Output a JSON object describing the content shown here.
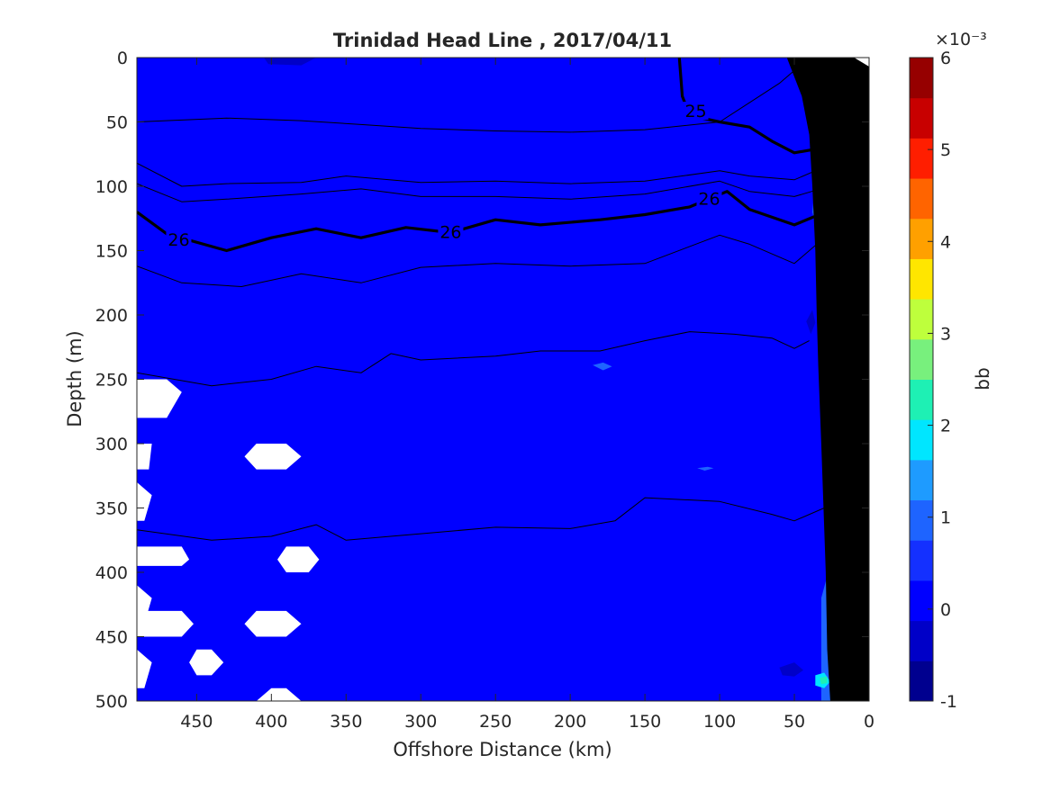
{
  "chart_data": {
    "type": "heatmap",
    "title": "Trinidad Head Line , 2017/04/11",
    "xlabel": "Offshore Distance (km)",
    "ylabel": "Depth (m)",
    "xlim": [
      490,
      0
    ],
    "ylim": [
      0,
      500
    ],
    "x_ticks": [
      "450",
      "400",
      "350",
      "300",
      "250",
      "200",
      "150",
      "100",
      "50",
      "0"
    ],
    "x_tick_values": [
      450,
      400,
      350,
      300,
      250,
      200,
      150,
      100,
      50,
      0
    ],
    "y_ticks": [
      "0",
      "50",
      "100",
      "150",
      "200",
      "250",
      "300",
      "350",
      "400",
      "450",
      "500"
    ],
    "y_tick_values": [
      0,
      50,
      100,
      150,
      200,
      250,
      300,
      350,
      400,
      450,
      500
    ],
    "field_value": 0.3,
    "colorbar": {
      "label": "bb",
      "exponent_label": "×10⁻³",
      "range": [
        -1,
        6
      ],
      "ticks": [
        "-1",
        "0",
        "1",
        "2",
        "3",
        "4",
        "5",
        "6"
      ],
      "tick_values": [
        -1,
        0,
        1,
        2,
        3,
        4,
        5,
        6
      ],
      "colors": [
        "#00008f",
        "#0000c8",
        "#0000ff",
        "#1430ff",
        "#1e64ff",
        "#1e9bff",
        "#00e6ff",
        "#1ef0b4",
        "#78f07d",
        "#beff3c",
        "#ffe600",
        "#ffa000",
        "#ff6400",
        "#ff1e00",
        "#c80000",
        "#960000"
      ]
    },
    "contours": [
      {
        "label": "",
        "bold": false,
        "points": [
          [
            490,
            50
          ],
          [
            430,
            47
          ],
          [
            380,
            49
          ],
          [
            340,
            52
          ],
          [
            300,
            55
          ],
          [
            250,
            57
          ],
          [
            200,
            58
          ],
          [
            150,
            56
          ],
          [
            100,
            50
          ],
          [
            60,
            20
          ],
          [
            40,
            0
          ]
        ]
      },
      {
        "label": "",
        "bold": false,
        "points": [
          [
            490,
            82
          ],
          [
            460,
            100
          ],
          [
            430,
            98
          ],
          [
            380,
            97
          ],
          [
            350,
            92
          ],
          [
            300,
            97
          ],
          [
            250,
            96
          ],
          [
            200,
            98
          ],
          [
            150,
            96
          ],
          [
            100,
            88
          ],
          [
            80,
            92
          ],
          [
            50,
            95
          ],
          [
            20,
            80
          ]
        ]
      },
      {
        "label": "",
        "bold": false,
        "points": [
          [
            490,
            98
          ],
          [
            460,
            112
          ],
          [
            430,
            110
          ],
          [
            380,
            106
          ],
          [
            340,
            102
          ],
          [
            300,
            108
          ],
          [
            250,
            108
          ],
          [
            200,
            110
          ],
          [
            150,
            106
          ],
          [
            100,
            96
          ],
          [
            80,
            104
          ],
          [
            50,
            108
          ],
          [
            15,
            96
          ]
        ]
      },
      {
        "label": "25",
        "bold": true,
        "label_at": [
          116,
          42
        ],
        "points": [
          [
            127,
            0
          ],
          [
            125,
            30
          ],
          [
            120,
            45
          ],
          [
            100,
            50
          ],
          [
            80,
            54
          ],
          [
            65,
            65
          ],
          [
            50,
            74
          ],
          [
            30,
            70
          ],
          [
            15,
            60
          ],
          [
            10,
            48
          ]
        ]
      },
      {
        "label": "26",
        "bold": true,
        "label_at": [
          462,
          142
        ],
        "label2": "26",
        "label2_at": [
          280,
          136
        ],
        "label3": "26",
        "label3_at": [
          107,
          110
        ],
        "points": [
          [
            490,
            120
          ],
          [
            470,
            137
          ],
          [
            430,
            150
          ],
          [
            400,
            140
          ],
          [
            370,
            133
          ],
          [
            340,
            140
          ],
          [
            310,
            132
          ],
          [
            280,
            136
          ],
          [
            250,
            126
          ],
          [
            220,
            130
          ],
          [
            180,
            126
          ],
          [
            150,
            122
          ],
          [
            120,
            116
          ],
          [
            95,
            104
          ],
          [
            80,
            118
          ],
          [
            50,
            130
          ],
          [
            25,
            118
          ],
          [
            10,
            100
          ]
        ]
      },
      {
        "label": "",
        "bold": false,
        "points": [
          [
            490,
            162
          ],
          [
            460,
            175
          ],
          [
            420,
            178
          ],
          [
            380,
            168
          ],
          [
            340,
            175
          ],
          [
            300,
            163
          ],
          [
            250,
            160
          ],
          [
            200,
            162
          ],
          [
            150,
            160
          ],
          [
            100,
            138
          ],
          [
            80,
            145
          ],
          [
            50,
            160
          ],
          [
            30,
            140
          ]
        ]
      },
      {
        "label": "",
        "bold": false,
        "points": [
          [
            490,
            245
          ],
          [
            440,
            255
          ],
          [
            400,
            250
          ],
          [
            370,
            240
          ],
          [
            340,
            245
          ],
          [
            320,
            230
          ],
          [
            300,
            235
          ],
          [
            250,
            232
          ],
          [
            220,
            228
          ],
          [
            180,
            228
          ],
          [
            150,
            220
          ],
          [
            120,
            213
          ],
          [
            90,
            215
          ],
          [
            65,
            218
          ],
          [
            50,
            226
          ],
          [
            40,
            220
          ]
        ]
      },
      {
        "label": "",
        "bold": false,
        "points": [
          [
            490,
            367
          ],
          [
            440,
            375
          ],
          [
            400,
            372
          ],
          [
            370,
            363
          ],
          [
            350,
            375
          ],
          [
            300,
            370
          ],
          [
            250,
            365
          ],
          [
            200,
            366
          ],
          [
            170,
            360
          ],
          [
            150,
            342
          ],
          [
            100,
            345
          ],
          [
            65,
            355
          ],
          [
            50,
            360
          ],
          [
            30,
            350
          ]
        ]
      }
    ],
    "patches": [
      {
        "color": "#0000c8",
        "points": [
          [
            370,
            0
          ],
          [
            405,
            0
          ],
          [
            402,
            5
          ],
          [
            380,
            6
          ]
        ]
      },
      {
        "color": "#1e9bff",
        "points": [
          [
            23,
            80
          ],
          [
            10,
            78
          ],
          [
            10,
            130
          ],
          [
            15,
            180
          ],
          [
            22,
            210
          ],
          [
            30,
            190
          ],
          [
            32,
            150
          ],
          [
            35,
            110
          ],
          [
            30,
            90
          ]
        ]
      },
      {
        "color": "#00e6ff",
        "points": [
          [
            12,
            105
          ],
          [
            10,
            100
          ],
          [
            10,
            135
          ],
          [
            15,
            130
          ]
        ]
      },
      {
        "color": "#1e64ff",
        "points": [
          [
            35,
            85
          ],
          [
            20,
            75
          ],
          [
            12,
            80
          ],
          [
            10,
            200
          ],
          [
            18,
            230
          ],
          [
            32,
            215
          ],
          [
            30,
            160
          ],
          [
            38,
            120
          ]
        ]
      },
      {
        "color": "#1e64ff",
        "points": [
          [
            32,
            540
          ],
          [
            20,
            540
          ],
          [
            20,
            400
          ],
          [
            25,
            390
          ],
          [
            32,
            420
          ]
        ]
      },
      {
        "color": "#00e6ff",
        "points": [
          [
            36,
            480
          ],
          [
            30,
            478
          ],
          [
            26,
            485
          ],
          [
            30,
            490
          ],
          [
            36,
            488
          ]
        ]
      },
      {
        "color": "#1ef0b4",
        "points": [
          [
            33,
            482
          ],
          [
            28,
            481
          ],
          [
            28,
            486
          ],
          [
            32,
            487
          ]
        ]
      },
      {
        "color": "#0000c8",
        "points": [
          [
            60,
            474
          ],
          [
            50,
            470
          ],
          [
            44,
            476
          ],
          [
            50,
            481
          ],
          [
            58,
            480
          ]
        ]
      },
      {
        "color": "#0000c8",
        "points": [
          [
            42,
            205
          ],
          [
            38,
            196
          ],
          [
            36,
            206
          ],
          [
            39,
            215
          ]
        ]
      },
      {
        "color": "#1e64ff",
        "points": [
          [
            185,
            239
          ],
          [
            178,
            237
          ],
          [
            172,
            240
          ],
          [
            178,
            243
          ]
        ]
      },
      {
        "color": "#1e64ff",
        "points": [
          [
            115,
            319
          ],
          [
            108,
            318
          ],
          [
            104,
            319
          ],
          [
            110,
            321
          ]
        ]
      }
    ],
    "missing": [
      {
        "points": [
          [
            490,
            250
          ],
          [
            470,
            250
          ],
          [
            460,
            260
          ],
          [
            470,
            280
          ],
          [
            490,
            280
          ]
        ]
      },
      {
        "points": [
          [
            490,
            300
          ],
          [
            480,
            300
          ],
          [
            482,
            320
          ],
          [
            490,
            320
          ]
        ]
      },
      {
        "points": [
          [
            490,
            330
          ],
          [
            480,
            340
          ],
          [
            485,
            360
          ],
          [
            490,
            360
          ]
        ]
      },
      {
        "points": [
          [
            490,
            380
          ],
          [
            460,
            380
          ],
          [
            455,
            390
          ],
          [
            460,
            395
          ],
          [
            490,
            395
          ]
        ]
      },
      {
        "points": [
          [
            490,
            410
          ],
          [
            480,
            420
          ],
          [
            485,
            440
          ],
          [
            490,
            440
          ]
        ]
      },
      {
        "points": [
          [
            490,
            430
          ],
          [
            460,
            430
          ],
          [
            452,
            440
          ],
          [
            460,
            450
          ],
          [
            490,
            450
          ]
        ]
      },
      {
        "points": [
          [
            490,
            460
          ],
          [
            480,
            470
          ],
          [
            485,
            490
          ],
          [
            490,
            490
          ]
        ]
      },
      {
        "points": [
          [
            410,
            300
          ],
          [
            390,
            300
          ],
          [
            380,
            310
          ],
          [
            390,
            320
          ],
          [
            410,
            320
          ],
          [
            418,
            310
          ]
        ]
      },
      {
        "points": [
          [
            390,
            380
          ],
          [
            375,
            380
          ],
          [
            368,
            390
          ],
          [
            375,
            400
          ],
          [
            390,
            400
          ],
          [
            396,
            390
          ]
        ]
      },
      {
        "points": [
          [
            410,
            430
          ],
          [
            390,
            430
          ],
          [
            380,
            440
          ],
          [
            390,
            450
          ],
          [
            410,
            450
          ],
          [
            418,
            440
          ]
        ]
      },
      {
        "points": [
          [
            450,
            460
          ],
          [
            440,
            460
          ],
          [
            432,
            470
          ],
          [
            440,
            480
          ],
          [
            450,
            480
          ],
          [
            455,
            470
          ]
        ]
      },
      {
        "points": [
          [
            400,
            490
          ],
          [
            390,
            490
          ],
          [
            380,
            500
          ],
          [
            410,
            500
          ]
        ]
      },
      {
        "points": [
          [
            10,
            0
          ],
          [
            0,
            0
          ],
          [
            0,
            10
          ],
          [
            10,
            10
          ]
        ]
      }
    ],
    "bathymetry": {
      "color": "#000000",
      "points": [
        [
          0,
          7
        ],
        [
          0,
          500
        ],
        [
          26,
          500
        ],
        [
          28,
          460
        ],
        [
          29,
          400
        ],
        [
          32,
          300
        ],
        [
          34,
          240
        ],
        [
          35,
          200
        ],
        [
          36,
          150
        ],
        [
          38,
          100
        ],
        [
          40,
          60
        ],
        [
          45,
          30
        ],
        [
          55,
          0
        ],
        [
          10,
          0
        ]
      ]
    }
  }
}
